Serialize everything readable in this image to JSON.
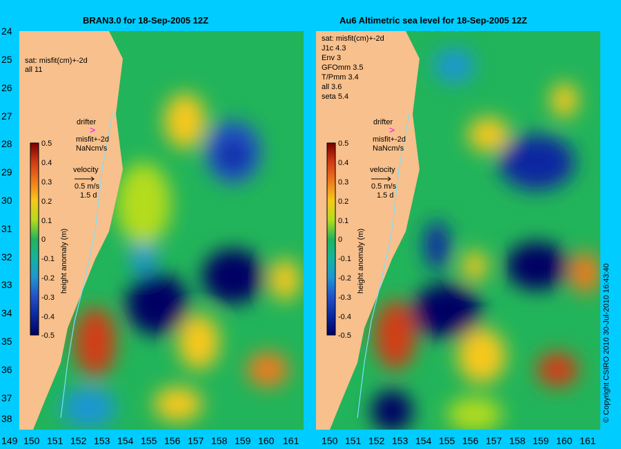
{
  "panels": [
    {
      "title": "BRAN3.0 for 18-Sep-2005 12Z",
      "stats_header": "sat: misfit(cm)+-2d",
      "stats": [
        "all  11"
      ]
    },
    {
      "title": "Au6 Altimetric sea level  for 18-Sep-2005 12Z",
      "stats_header": "sat: misfit(cm)+-2d",
      "stats": [
        "J1c    4.3",
        "Env    3",
        "GFOmm 3.5",
        "T/Pmm 3.4",
        "all   3.6",
        "seta   5.4"
      ]
    }
  ],
  "legend": {
    "drifter_label": "drifter",
    "drifter_misfit": "misfit+-2d",
    "drifter_value": "NaNcm/s",
    "velocity_label": "velocity",
    "velocity_scale": "0.5 m/s",
    "velocity_time": "1.5 d",
    "colorbar_title": "height anomaly (m)",
    "colorbar_ticks": [
      "0.5",
      "0.4",
      "0.3",
      "0.2",
      "0.1",
      "0",
      "-0.1",
      "-0.2",
      "-0.3",
      "-0.4",
      "-0.5"
    ]
  },
  "axes": {
    "lat_ticks": [
      "24",
      "25",
      "26",
      "27",
      "28",
      "29",
      "30",
      "31",
      "32",
      "33",
      "34",
      "35",
      "36",
      "37",
      "38"
    ],
    "lon_ticks": [
      "149",
      "150",
      "151",
      "152",
      "153",
      "154",
      "155",
      "156",
      "157",
      "158",
      "159",
      "160",
      "161"
    ]
  },
  "copyright": "© Copyright CSIRO 2010    30-Jul-2010 16:43:40",
  "colors": {
    "background": "#00ccff",
    "land": "#f8c08c",
    "ocean_base": "#22b45a",
    "drifter_arrow": "#ff00ff"
  }
}
